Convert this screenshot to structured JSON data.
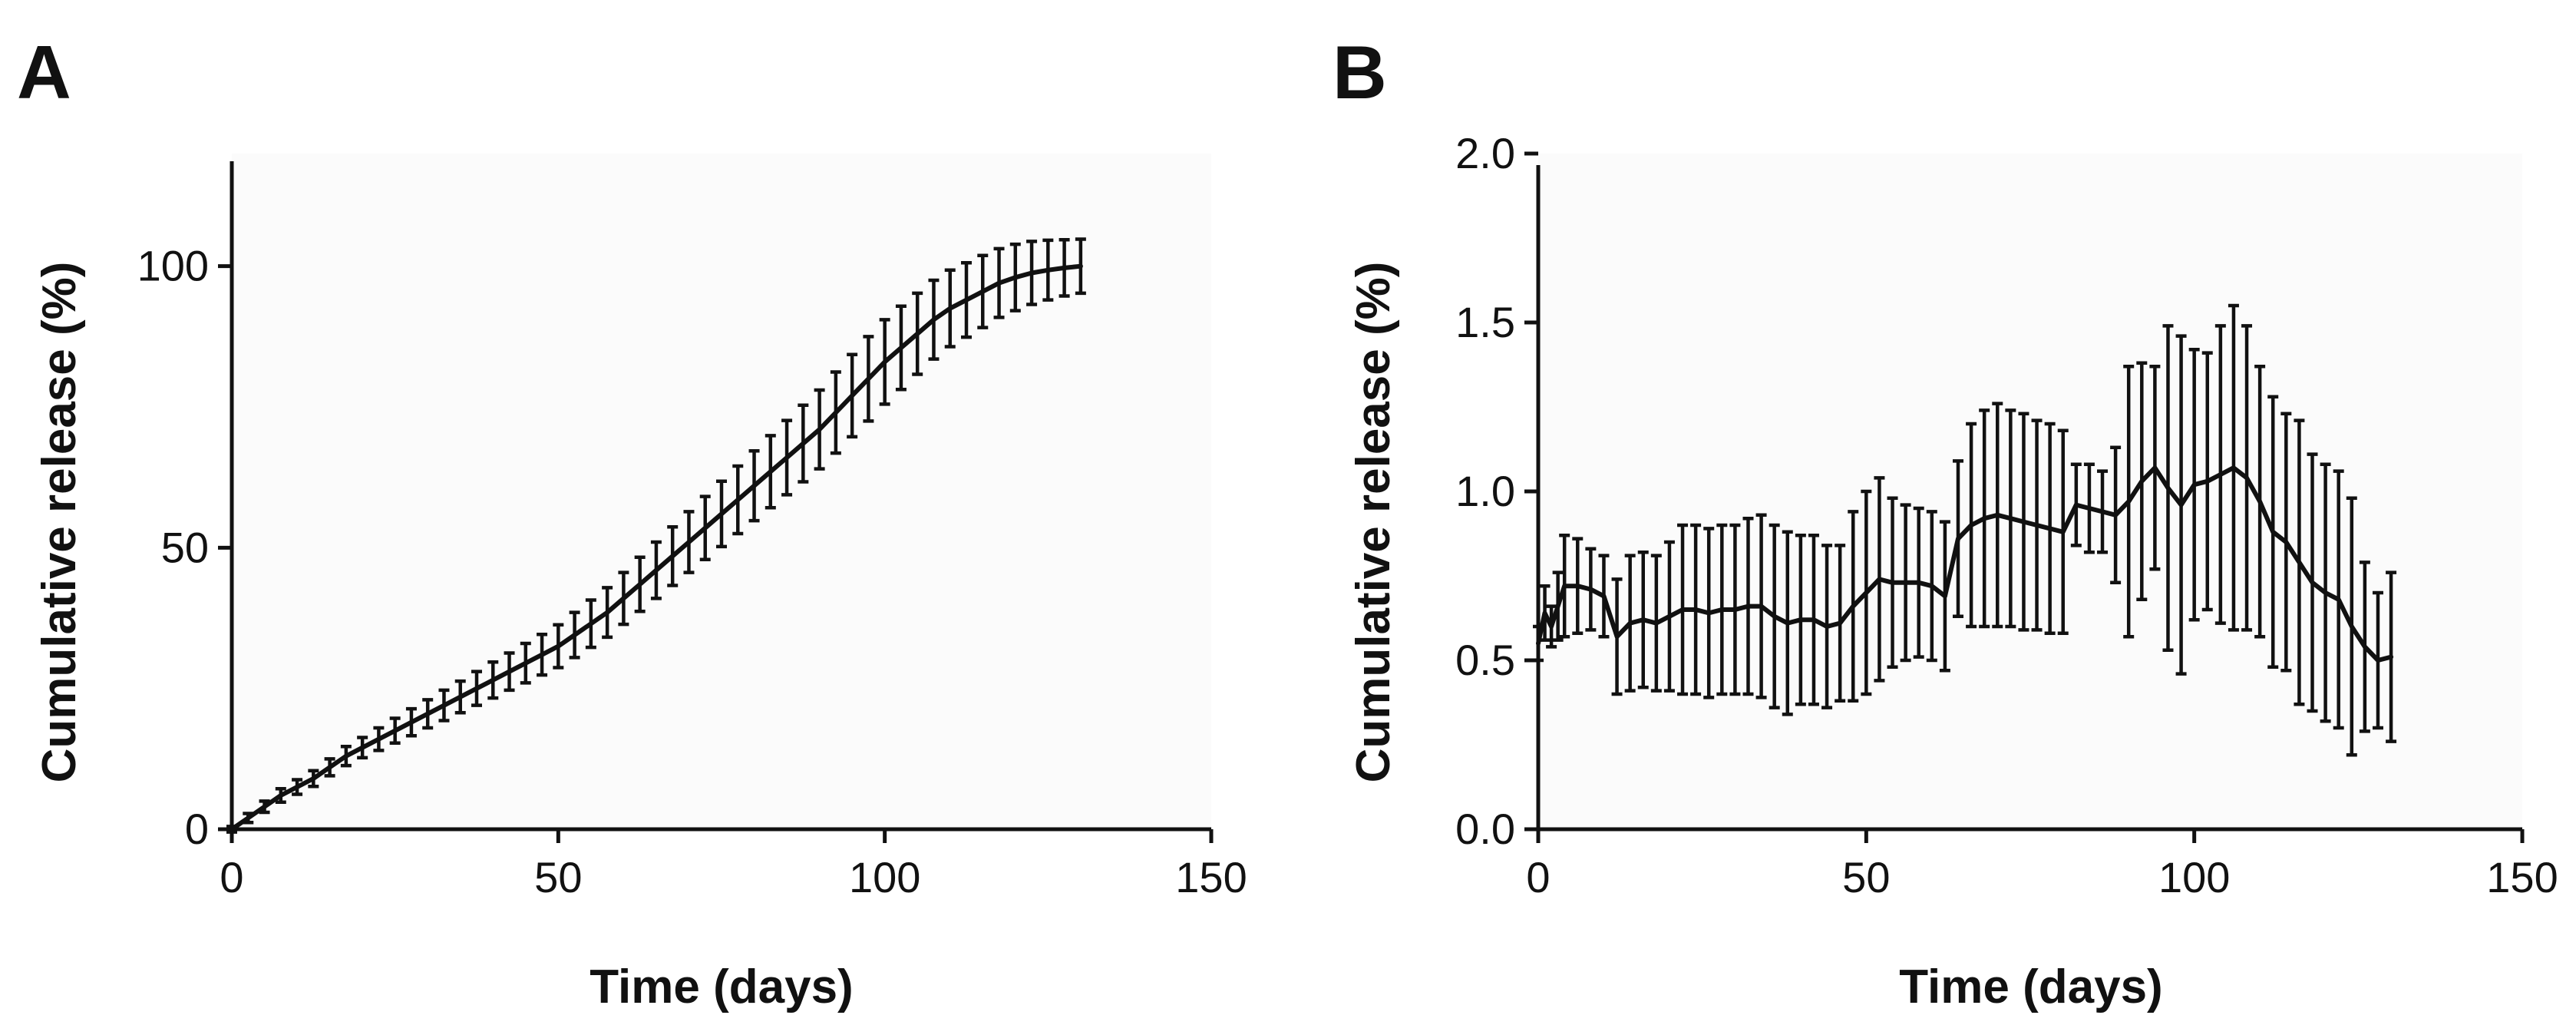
{
  "chart_data": [
    {
      "panel": "A",
      "type": "line",
      "title": "",
      "xlabel": "Time (days)",
      "ylabel": "Cumulative release (%)",
      "xlim": [
        0,
        150
      ],
      "ylim": [
        0,
        120
      ],
      "xticks": [
        0,
        50,
        100,
        150
      ],
      "yticks": [
        0,
        50,
        100
      ],
      "grid": false,
      "series": [
        {
          "name": "Cumulative release",
          "x": [
            0,
            2.5,
            5,
            7.5,
            10,
            12.5,
            15,
            17.5,
            20,
            22.5,
            25,
            27.5,
            30,
            32.5,
            35,
            37.5,
            40,
            42.5,
            45,
            47.5,
            50,
            52.5,
            55,
            57.5,
            60,
            62.5,
            65,
            67.5,
            70,
            72.5,
            75,
            77.5,
            80,
            82.5,
            85,
            87.5,
            90,
            92.5,
            95,
            97.5,
            100,
            102.5,
            105,
            107.5,
            110,
            112.5,
            115,
            117.5,
            120,
            122.5,
            125,
            127.5,
            130
          ],
          "y": [
            0,
            2,
            4,
            6,
            7.5,
            9,
            11,
            13,
            14.5,
            16,
            17.5,
            19,
            20.5,
            22,
            23.5,
            25,
            26.5,
            28,
            29.5,
            31,
            32.5,
            34.5,
            36.5,
            38.5,
            41,
            43.5,
            46,
            48.5,
            51,
            53.5,
            56,
            58.5,
            61,
            63.5,
            66,
            68.5,
            71,
            74,
            77,
            80,
            83,
            85.5,
            88,
            90.5,
            92.5,
            94,
            95.5,
            97,
            98,
            98.8,
            99.3,
            99.7,
            100
          ],
          "err": [
            0.5,
            0.8,
            1,
            1.2,
            1.3,
            1.4,
            1.5,
            1.7,
            1.8,
            2,
            2.2,
            2.4,
            2.5,
            2.7,
            2.8,
            3,
            3.2,
            3.3,
            3.5,
            3.6,
            3.8,
            4,
            4.2,
            4.4,
            4.6,
            4.8,
            5,
            5.2,
            5.4,
            5.6,
            5.8,
            6,
            6.2,
            6.4,
            6.6,
            6.8,
            7,
            7.2,
            7.3,
            7.5,
            7.5,
            7.4,
            7.2,
            7,
            6.8,
            6.6,
            6.4,
            6.1,
            5.9,
            5.6,
            5.3,
            5,
            4.8
          ]
        }
      ]
    },
    {
      "panel": "B",
      "type": "line",
      "title": "",
      "xlabel": "Time (days)",
      "ylabel": "Cumulative release (%)",
      "xlim": [
        0,
        150
      ],
      "ylim": [
        0,
        2
      ],
      "xticks": [
        0,
        50,
        100,
        150
      ],
      "yticks": [
        0.0,
        0.5,
        1.0,
        1.5,
        2.0
      ],
      "ytick_labels": [
        "0.0",
        "0.5",
        "1.0",
        "1.5",
        "2.0"
      ],
      "grid": false,
      "series": [
        {
          "name": "Cumulative release",
          "x": [
            0,
            1,
            2,
            3,
            4,
            6,
            8,
            10,
            12,
            14,
            16,
            18,
            20,
            22,
            24,
            26,
            28,
            30,
            32,
            34,
            36,
            38,
            40,
            42,
            44,
            46,
            48,
            50,
            52,
            54,
            56,
            58,
            60,
            62,
            64,
            66,
            68,
            70,
            72,
            74,
            76,
            78,
            80,
            82,
            84,
            86,
            88,
            90,
            92,
            94,
            96,
            98,
            100,
            102,
            104,
            106,
            108,
            110,
            112,
            114,
            116,
            118,
            120,
            122,
            124,
            126,
            128,
            130
          ],
          "y": [
            0.55,
            0.64,
            0.6,
            0.66,
            0.72,
            0.72,
            0.71,
            0.69,
            0.57,
            0.61,
            0.62,
            0.61,
            0.63,
            0.65,
            0.65,
            0.64,
            0.65,
            0.65,
            0.66,
            0.66,
            0.63,
            0.61,
            0.62,
            0.62,
            0.6,
            0.61,
            0.66,
            0.7,
            0.74,
            0.73,
            0.73,
            0.73,
            0.72,
            0.69,
            0.86,
            0.9,
            0.92,
            0.93,
            0.92,
            0.91,
            0.9,
            0.89,
            0.88,
            0.96,
            0.95,
            0.94,
            0.93,
            0.97,
            1.03,
            1.07,
            1.01,
            0.96,
            1.02,
            1.03,
            1.05,
            1.07,
            1.04,
            0.97,
            0.88,
            0.85,
            0.79,
            0.73,
            0.7,
            0.68,
            0.6,
            0.54,
            0.5,
            0.51
          ],
          "err": [
            0.05,
            0.08,
            0.06,
            0.1,
            0.15,
            0.14,
            0.12,
            0.12,
            0.17,
            0.2,
            0.2,
            0.2,
            0.22,
            0.25,
            0.25,
            0.25,
            0.25,
            0.25,
            0.26,
            0.27,
            0.27,
            0.27,
            0.25,
            0.25,
            0.24,
            0.23,
            0.28,
            0.3,
            0.3,
            0.25,
            0.23,
            0.22,
            0.22,
            0.22,
            0.23,
            0.3,
            0.32,
            0.33,
            0.32,
            0.32,
            0.31,
            0.31,
            0.3,
            0.12,
            0.13,
            0.12,
            0.2,
            0.4,
            0.35,
            0.3,
            0.48,
            0.5,
            0.4,
            0.38,
            0.44,
            0.48,
            0.45,
            0.4,
            0.4,
            0.38,
            0.42,
            0.38,
            0.38,
            0.38,
            0.38,
            0.25,
            0.2,
            0.25
          ]
        }
      ]
    }
  ]
}
